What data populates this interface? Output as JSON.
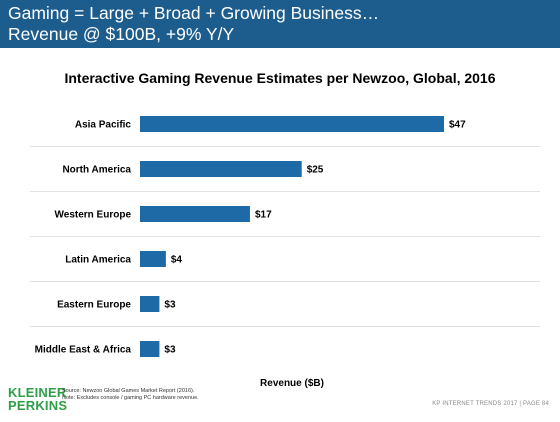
{
  "slide": {
    "title_line1": "Gaming = Large + Broad + Growing Business…",
    "title_line2": "Revenue @ $100B, +9% Y/Y"
  },
  "chart_data": {
    "type": "bar",
    "orientation": "horizontal",
    "title": "Interactive Gaming Revenue Estimates per Newzoo, Global, 2016",
    "xlabel": "Revenue ($B)",
    "ylabel": "",
    "categories": [
      "Asia Pacific",
      "North America",
      "Western Europe",
      "Latin America",
      "Eastern Europe",
      "Middle East & Africa"
    ],
    "values": [
      47,
      25,
      17,
      4,
      3,
      3
    ],
    "value_labels": [
      "$47",
      "$25",
      "$17",
      "$4",
      "$3",
      "$3"
    ],
    "xlim": [
      0,
      47
    ],
    "grid": false,
    "legend": "none",
    "bar_color": "#1d6aa6"
  },
  "source": {
    "line1": "Source: Newzoo Global Games Market Report (2016).",
    "line2": "Note: Excludes console / gaming PC hardware revenue."
  },
  "logo": {
    "line1": "KLEINER",
    "line2": "PERKINS",
    "color": "#2e9e47"
  },
  "footer": "KP INTERNET TRENDS 2017  |  PAGE 84",
  "colors": {
    "header_bg": "#1d5d8e",
    "separator": "#d9d9d9"
  }
}
